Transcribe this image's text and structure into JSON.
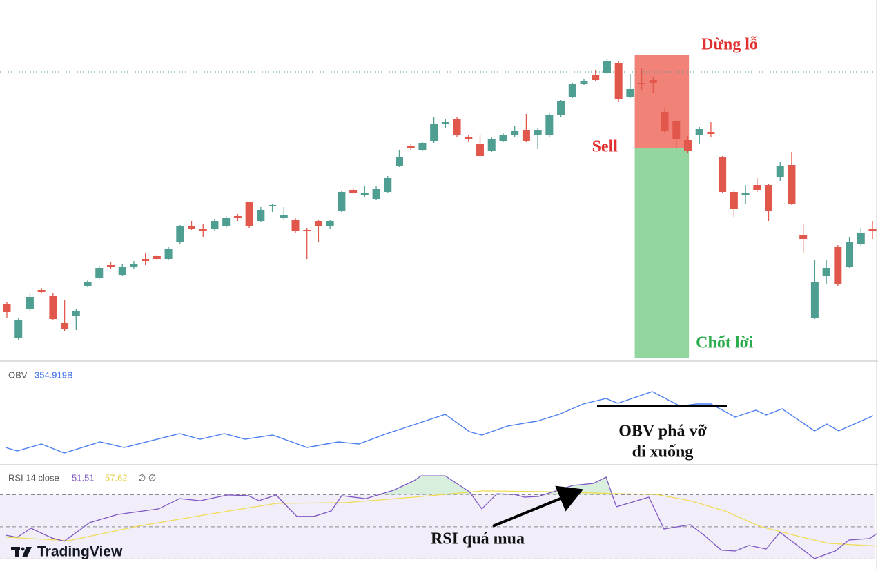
{
  "chart_data": [
    {
      "type": "candlestick",
      "open": [
        80,
        30,
        72,
        100,
        92,
        52,
        62,
        106,
        117,
        136,
        122,
        134,
        145,
        149,
        145,
        169,
        192,
        189,
        188,
        192,
        207,
        227,
        200,
        221,
        205,
        202,
        187,
        200,
        192,
        214,
        245,
        238,
        232,
        242,
        280,
        309,
        303,
        316,
        341,
        348,
        322,
        312,
        302,
        316,
        324,
        332,
        324,
        324,
        353,
        380,
        399,
        411,
        415,
        429,
        380,
        400,
        404,
        358,
        345,
        317,
        325,
        329,
        292,
        242,
        237,
        252,
        252,
        264,
        281,
        180,
        59,
        120,
        162,
        134,
        166,
        188
      ],
      "high": [
        83,
        60,
        95,
        103,
        96,
        85,
        73,
        115,
        135,
        141,
        138,
        142,
        153,
        151,
        163,
        194,
        200,
        195,
        203,
        207,
        210,
        228,
        220,
        225,
        220,
        204,
        190,
        202,
        202,
        244,
        248,
        250,
        250,
        265,
        303,
        311,
        315,
        350,
        348,
        350,
        325,
        324,
        322,
        327,
        337,
        355,
        335,
        356,
        375,
        400,
        406,
        418,
        434,
        431,
        413,
        422,
        408,
        364,
        348,
        323,
        336,
        344,
        294,
        245,
        252,
        262,
        254,
        285,
        300,
        195,
        143,
        143,
        165,
        177,
        190,
        200
      ],
      "low": [
        60,
        27,
        70,
        95,
        57,
        40,
        42,
        104,
        116,
        130,
        121,
        130,
        136,
        143,
        143,
        167,
        187,
        177,
        186,
        190,
        200,
        190,
        198,
        213,
        202,
        183,
        145,
        169,
        188,
        213,
        239,
        234,
        231,
        240,
        278,
        303,
        302,
        313,
        335,
        322,
        315,
        292,
        300,
        314,
        322,
        314,
        304,
        322,
        351,
        378,
        397,
        402,
        413,
        373,
        378,
        390,
        385,
        328,
        306,
        298,
        312,
        322,
        240,
        206,
        224,
        242,
        200,
        258,
        223,
        154,
        58,
        108,
        106,
        132,
        164,
        174
      ],
      "close": [
        68,
        57,
        90,
        97,
        58,
        43,
        70,
        112,
        132,
        133,
        133,
        137,
        142,
        145,
        160,
        192,
        189,
        186,
        200,
        204,
        204,
        193,
        216,
        223,
        208,
        185,
        186,
        192,
        200,
        242,
        241,
        240,
        247,
        262,
        292,
        305,
        313,
        341,
        343,
        324,
        319,
        294,
        318,
        324,
        330,
        316,
        332,
        354,
        374,
        398,
        403,
        404,
        432,
        377,
        391,
        398,
        400,
        330,
        318,
        302,
        333,
        326,
        242,
        218,
        240,
        245,
        214,
        280,
        225,
        174,
        112,
        132,
        108,
        170,
        182,
        185
      ],
      "ylim": [
        0,
        520
      ],
      "up_color": "#4e9e92",
      "down_color": "#e2574c",
      "price_line": 416,
      "position": {
        "start": 54.4,
        "end": 59.1,
        "entry": 306,
        "stop": 440,
        "target": 2,
        "stop_label": "Dừng lỗ",
        "entry_label": "Sell",
        "target_label": "Chốt lời"
      }
    },
    {
      "type": "line",
      "title": "OBV",
      "value_label": "354.919B",
      "color": "#4b7ff0",
      "x": [
        8,
        25,
        60,
        93,
        145,
        180,
        260,
        290,
        325,
        355,
        395,
        445,
        490,
        520,
        560,
        600,
        645,
        680,
        698,
        735,
        765,
        778,
        810,
        845,
        878,
        895,
        945,
        985,
        1010,
        1030,
        1065,
        1095,
        1110,
        1133,
        1180,
        1198,
        1215,
        1265
      ],
      "values": [
        22,
        17,
        27,
        14,
        30,
        22,
        42,
        34,
        42,
        34,
        40,
        22,
        30,
        27,
        42,
        55,
        70,
        45,
        40,
        53,
        58,
        60,
        70,
        85,
        93,
        86,
        103,
        82,
        85,
        85,
        66,
        76,
        69,
        78,
        46,
        56,
        46,
        68
      ],
      "xlim": [
        0,
        1272
      ],
      "ylim": [
        0,
        146
      ],
      "level": {
        "value": 82,
        "x": [
          865,
          1053
        ]
      },
      "annotation": [
        "OBV phá vỡ",
        "đi xuống"
      ]
    },
    {
      "type": "rsi",
      "title": "RSI 14 close",
      "legend_extra": "∅ ∅",
      "series": [
        {
          "label": "51.51",
          "color": "#7e57c2",
          "x": [
            8,
            25,
            45,
            75,
            93,
            130,
            170,
            230,
            260,
            290,
            330,
            360,
            375,
            400,
            430,
            455,
            480,
            495,
            530,
            570,
            600,
            610,
            645,
            680,
            698,
            720,
            745,
            760,
            780,
            830,
            860,
            878,
            893,
            940,
            962,
            1000,
            1020,
            1045,
            1065,
            1085,
            1110,
            1130,
            1180,
            1210,
            1230,
            1260,
            1270
          ],
          "values": [
            44.8,
            43.5,
            49.1,
            43.1,
            41.0,
            52.6,
            57.7,
            61.2,
            67.6,
            66.3,
            69.8,
            69.4,
            66.3,
            69.8,
            56.5,
            56.5,
            59.9,
            69.4,
            67.6,
            72.8,
            78.8,
            81.8,
            81.8,
            71.9,
            61.2,
            70.6,
            70.2,
            68.5,
            68.9,
            75.8,
            77.1,
            81.0,
            62.5,
            68.5,
            48.7,
            51.3,
            44.8,
            35.4,
            34.9,
            38.4,
            36.2,
            46.6,
            30.2,
            34.9,
            41.8,
            42.7,
            45.7
          ]
        },
        {
          "label": "57.62",
          "color": "#f0dc55",
          "x": [
            8,
            100,
            200,
            300,
            400,
            500,
            600,
            700,
            800,
            900,
            950,
            1000,
            1050,
            1100,
            1150,
            1200,
            1270
          ],
          "values": [
            43.5,
            41.4,
            50.4,
            57.7,
            64.6,
            65.1,
            68.5,
            72.4,
            71.9,
            70.6,
            70.2,
            66.3,
            59.9,
            50.4,
            44.8,
            39.7,
            38.0
          ]
        }
      ],
      "xlim": [
        0,
        1272
      ],
      "ylim": [
        25,
        87
      ],
      "bands": [
        30,
        50,
        70
      ],
      "overbought": 70,
      "annotation": "RSI quá mua"
    }
  ],
  "brand": "TradingView"
}
